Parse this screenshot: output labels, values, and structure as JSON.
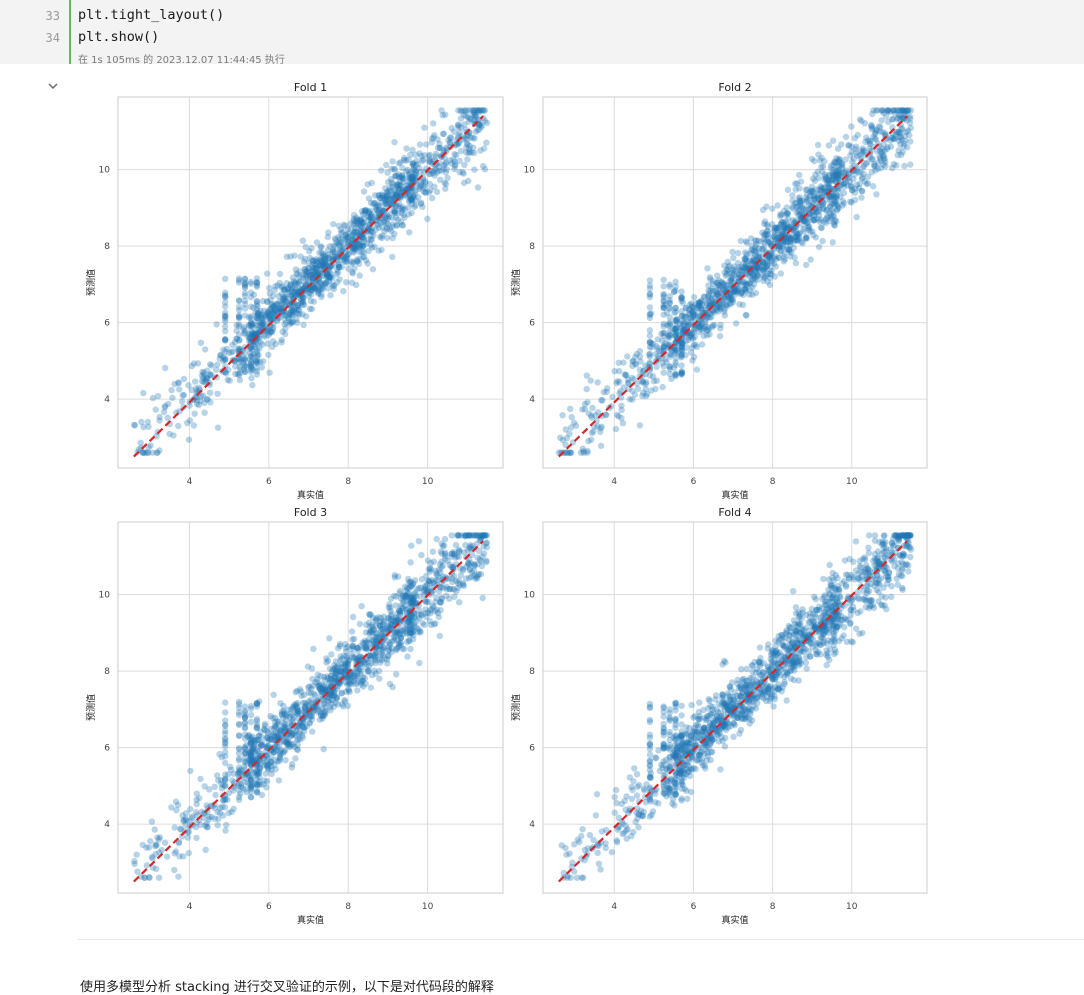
{
  "code": {
    "lines": [
      {
        "number": "33",
        "text": "plt.tight_layout()"
      },
      {
        "number": "34",
        "text": "plt.show()"
      }
    ],
    "exec_info": "在 1s 105ms 的 2023.12.07 11:44:45 执行"
  },
  "output": {
    "collapse_icon": "chevron-down-icon"
  },
  "colors": {
    "points": "#1f77b4",
    "ideal_line": "#d62728",
    "gutter": "#6bb36b"
  },
  "chart_data": [
    {
      "type": "scatter",
      "title": "Fold 1",
      "xlabel": "真实值",
      "ylabel": "预测值",
      "xlim": [
        2.2,
        11.9
      ],
      "ylim": [
        2.2,
        11.9
      ],
      "xticks": [
        4,
        6,
        8,
        10
      ],
      "yticks": [
        4,
        6,
        8,
        10
      ],
      "grid": true,
      "reference_line": {
        "style": "dashed",
        "from": [
          2.6,
          2.5
        ],
        "to": [
          11.4,
          11.4
        ]
      },
      "series": [
        {
          "points": "dense cloud along diagonal, alpha 0.35"
        }
      ]
    },
    {
      "type": "scatter",
      "title": "Fold 2",
      "xlabel": "真实值",
      "ylabel": "预测值",
      "xlim": [
        2.2,
        11.9
      ],
      "ylim": [
        2.2,
        11.9
      ],
      "xticks": [
        4,
        6,
        8,
        10
      ],
      "yticks": [
        4,
        6,
        8,
        10
      ],
      "grid": true,
      "reference_line": {
        "style": "dashed",
        "from": [
          2.6,
          2.5
        ],
        "to": [
          11.4,
          11.4
        ]
      },
      "series": [
        {
          "points": "dense cloud along diagonal, alpha 0.35"
        }
      ]
    },
    {
      "type": "scatter",
      "title": "Fold 3",
      "xlabel": "真实值",
      "ylabel": "预测值",
      "xlim": [
        2.2,
        11.9
      ],
      "ylim": [
        2.2,
        11.9
      ],
      "xticks": [
        4,
        6,
        8,
        10
      ],
      "yticks": [
        4,
        6,
        8,
        10
      ],
      "grid": true,
      "reference_line": {
        "style": "dashed",
        "from": [
          2.6,
          2.5
        ],
        "to": [
          11.4,
          11.4
        ]
      },
      "series": [
        {
          "points": "dense cloud along diagonal, alpha 0.35"
        }
      ]
    },
    {
      "type": "scatter",
      "title": "Fold 4",
      "xlabel": "真实值",
      "ylabel": "预测值",
      "xlim": [
        2.2,
        11.9
      ],
      "ylim": [
        2.2,
        11.9
      ],
      "xticks": [
        4,
        6,
        8,
        10
      ],
      "yticks": [
        4,
        6,
        8,
        10
      ],
      "grid": true,
      "reference_line": {
        "style": "dashed",
        "from": [
          2.6,
          2.5
        ],
        "to": [
          11.4,
          11.4
        ]
      },
      "series": [
        {
          "points": "dense cloud along diagonal, alpha 0.35"
        }
      ]
    }
  ],
  "next_cell_text": "使用多模型分析 stacking 进行交叉验证的示例，以下是对代码段的解释"
}
